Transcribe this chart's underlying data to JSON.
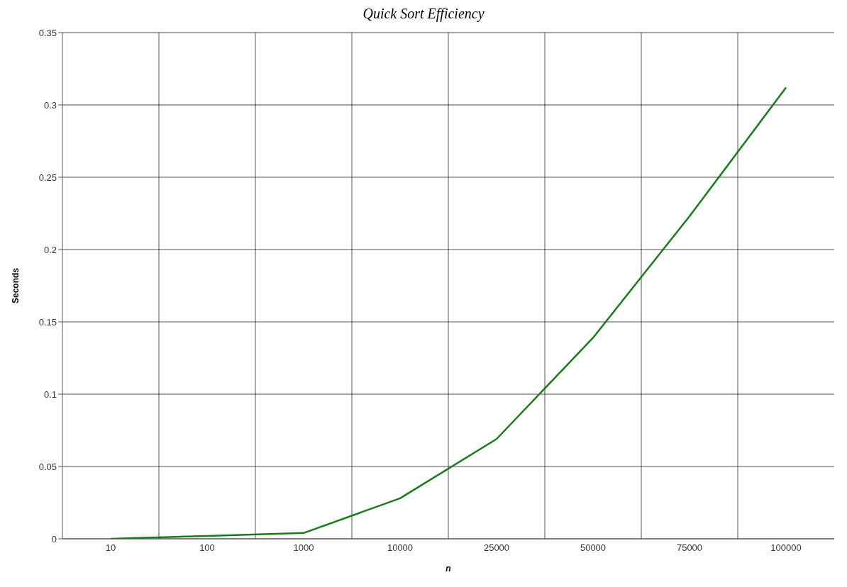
{
  "chart_data": {
    "type": "line",
    "title": "Quick Sort Efficiency",
    "xlabel": "n",
    "ylabel": "Seconds",
    "categories": [
      "10",
      "100",
      "1000",
      "10000",
      "25000",
      "50000",
      "75000",
      "100000"
    ],
    "series": [
      {
        "color": "#1a7a1a",
        "values": [
          0,
          0.002,
          0.004,
          0.028,
          0.069,
          0.139,
          0.223,
          0.312
        ]
      }
    ],
    "ylim": [
      0,
      0.35
    ],
    "yticks": [
      0,
      0.05,
      0.1,
      0.15,
      0.2,
      0.25,
      0.3,
      0.35
    ],
    "grid": true,
    "legend": false,
    "marker": "none",
    "line_style": "solid"
  }
}
